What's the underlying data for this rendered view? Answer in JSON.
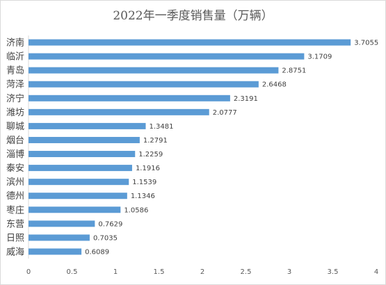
{
  "chart_data": {
    "type": "bar",
    "orientation": "horizontal",
    "title": "2022年一季度销售量（万辆）",
    "categories": [
      "济南",
      "临沂",
      "青岛",
      "菏泽",
      "济宁",
      "潍坊",
      "聊城",
      "烟台",
      "淄博",
      "泰安",
      "滨州",
      "德州",
      "枣庄",
      "东营",
      "日照",
      "威海"
    ],
    "values": [
      3.7055,
      3.1709,
      2.8751,
      2.6468,
      2.3191,
      2.0777,
      1.3481,
      1.2791,
      1.2259,
      1.1916,
      1.1539,
      1.1346,
      1.0586,
      0.7629,
      0.7035,
      0.6089
    ],
    "value_labels": [
      "3.7055",
      "3.1709",
      "2.8751",
      "2.6468",
      "2.3191",
      "2.0777",
      "1.3481",
      "1.2791",
      "1.2259",
      "1.1916",
      "1.1539",
      "1.1346",
      "1.0586",
      "0.7629",
      "0.7035",
      "0.6089"
    ],
    "xlim": [
      0,
      4
    ],
    "xticks": [
      "0",
      "0.5",
      "1",
      "1.5",
      "2",
      "2.5",
      "3",
      "3.5",
      "4"
    ],
    "grid": false,
    "legend": "none",
    "bar_color": "#5b9bd5"
  }
}
